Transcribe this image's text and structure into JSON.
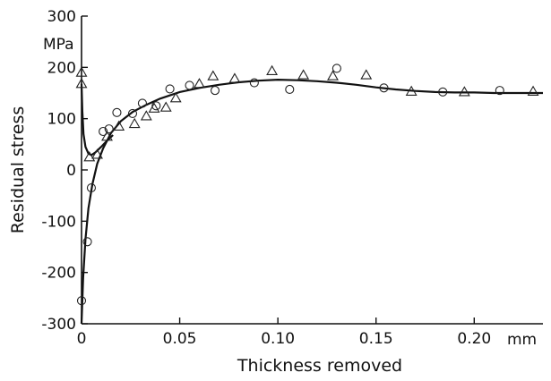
{
  "chart_data": {
    "type": "scatter",
    "xlabel": "Thickness removed",
    "ylabel": "Residual stress",
    "x_unit": "mm",
    "y_unit": "MPa",
    "xlim": [
      0,
      0.235
    ],
    "ylim": [
      -300,
      300
    ],
    "x_ticks": [
      0,
      0.05,
      0.1,
      0.15,
      0.2
    ],
    "x_tick_labels": [
      "0",
      "0.05",
      "0.10",
      "0.15",
      "0.20"
    ],
    "y_ticks": [
      -300,
      -200,
      -100,
      0,
      100,
      200,
      300
    ],
    "y_tick_labels": [
      "-300",
      "-200",
      "-100",
      "0",
      "100",
      "200",
      "300"
    ],
    "grid": false,
    "series": [
      {
        "marker": "circle",
        "points": [
          [
            0.0,
            -255
          ],
          [
            0.003,
            -140
          ],
          [
            0.005,
            -35
          ],
          [
            0.011,
            75
          ],
          [
            0.014,
            80
          ],
          [
            0.018,
            112
          ],
          [
            0.026,
            110
          ],
          [
            0.031,
            130
          ],
          [
            0.038,
            125
          ],
          [
            0.045,
            158
          ],
          [
            0.055,
            165
          ],
          [
            0.068,
            155
          ],
          [
            0.088,
            170
          ],
          [
            0.106,
            157
          ],
          [
            0.13,
            198
          ],
          [
            0.154,
            160
          ],
          [
            0.184,
            152
          ],
          [
            0.213,
            155
          ]
        ]
      },
      {
        "marker": "triangle",
        "points": [
          [
            0.0,
            190
          ],
          [
            0.0,
            168
          ],
          [
            0.004,
            25
          ],
          [
            0.008,
            30
          ],
          [
            0.013,
            65
          ],
          [
            0.019,
            85
          ],
          [
            0.027,
            90
          ],
          [
            0.033,
            105
          ],
          [
            0.037,
            120
          ],
          [
            0.043,
            122
          ],
          [
            0.048,
            140
          ],
          [
            0.06,
            168
          ],
          [
            0.067,
            183
          ],
          [
            0.078,
            178
          ],
          [
            0.097,
            193
          ],
          [
            0.113,
            185
          ],
          [
            0.128,
            183
          ],
          [
            0.145,
            185
          ],
          [
            0.168,
            153
          ],
          [
            0.195,
            152
          ],
          [
            0.23,
            153
          ]
        ]
      }
    ],
    "curves": [
      {
        "points": [
          [
            0.0,
            -300
          ],
          [
            0.0008,
            -210
          ],
          [
            0.002,
            -135
          ],
          [
            0.0035,
            -75
          ],
          [
            0.0055,
            -28
          ],
          [
            0.008,
            12
          ],
          [
            0.011,
            42
          ],
          [
            0.015,
            72
          ],
          [
            0.02,
            95
          ],
          [
            0.026,
            113
          ],
          [
            0.033,
            127
          ],
          [
            0.04,
            139
          ],
          [
            0.05,
            152
          ],
          [
            0.06,
            160
          ],
          [
            0.07,
            166
          ],
          [
            0.08,
            171
          ],
          [
            0.09,
            174
          ],
          [
            0.1,
            176
          ],
          [
            0.11,
            175
          ],
          [
            0.12,
            173
          ],
          [
            0.13,
            170
          ],
          [
            0.14,
            166
          ],
          [
            0.15,
            161
          ],
          [
            0.16,
            157
          ],
          [
            0.17,
            154
          ],
          [
            0.18,
            152
          ],
          [
            0.19,
            151
          ],
          [
            0.2,
            151
          ],
          [
            0.21,
            150
          ],
          [
            0.22,
            150
          ],
          [
            0.235,
            150
          ]
        ]
      },
      {
        "points": [
          [
            0.0,
            168
          ],
          [
            0.0004,
            115
          ],
          [
            0.001,
            70
          ],
          [
            0.002,
            45
          ],
          [
            0.0035,
            32
          ],
          [
            0.005,
            29
          ],
          [
            0.007,
            34
          ],
          [
            0.01,
            45
          ],
          [
            0.013,
            57
          ],
          [
            0.016,
            68
          ]
        ]
      }
    ]
  }
}
